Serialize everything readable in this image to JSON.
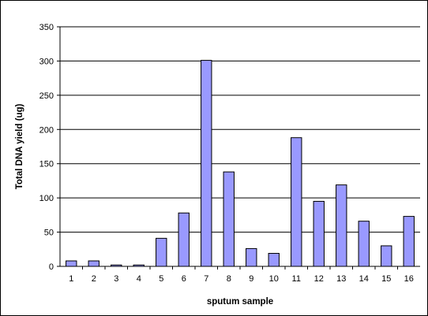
{
  "chart_data": {
    "type": "bar",
    "title": "",
    "xlabel": "sputum sample",
    "ylabel": "Total DNA yield (ug)",
    "ylim": [
      0,
      350
    ],
    "yticks": [
      0,
      50,
      100,
      150,
      200,
      250,
      300,
      350
    ],
    "grid": true,
    "legend": "none",
    "categories": [
      "1",
      "2",
      "3",
      "4",
      "5",
      "6",
      "7",
      "8",
      "9",
      "10",
      "11",
      "12",
      "13",
      "14",
      "15",
      "16"
    ],
    "values": [
      8,
      8,
      2,
      2,
      41,
      78,
      301,
      138,
      26,
      19,
      188,
      95,
      119,
      66,
      30,
      73
    ],
    "colors": {
      "bar": "#9999ff",
      "bar_stroke": "#000000",
      "grid": "#000000"
    }
  }
}
